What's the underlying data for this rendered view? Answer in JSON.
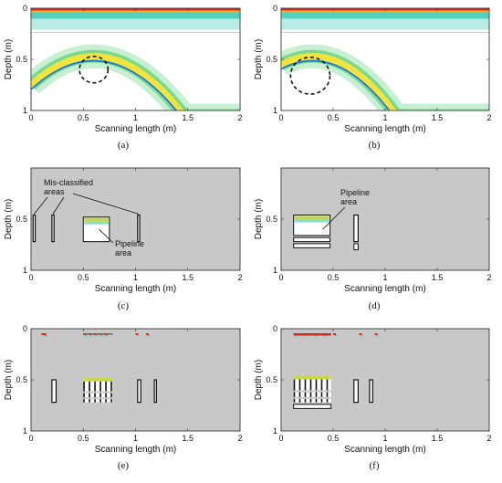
{
  "figure": {
    "panels": [
      {
        "id": "a",
        "label": "(a)",
        "kind": "gpr-radargram",
        "xlabel": "Scanning length (m)",
        "ylabel": "Depth (m)",
        "xticks": [
          "0",
          "0.5",
          "1",
          "1.5",
          "2"
        ],
        "yticks": [
          "0",
          "0.5",
          "1"
        ],
        "hyperbola": {
          "apex_x_m": 0.6,
          "apex_depth_m": 0.47,
          "depth_at_x0_m": 0.75
        },
        "circle": {
          "center_x_m": 0.6,
          "center_depth_m": 0.6,
          "radius_m": 0.13,
          "style": "dashed"
        }
      },
      {
        "id": "b",
        "label": "(b)",
        "kind": "gpr-radargram",
        "xlabel": "Scanning length (m)",
        "ylabel": "Depth (m)",
        "xticks": [
          "0",
          "0.5",
          "1",
          "1.5",
          "2"
        ],
        "yticks": [
          "0",
          "0.5",
          "1"
        ],
        "hyperbola": {
          "apex_x_m": 0.3,
          "apex_depth_m": 0.47,
          "depth_at_x0_m": 0.55
        },
        "circle": {
          "center_x_m": 0.28,
          "center_depth_m": 0.66,
          "radius_m": 0.18,
          "style": "dashed"
        }
      },
      {
        "id": "c",
        "label": "(c)",
        "kind": "classification",
        "xlabel": "Scanning length (m)",
        "ylabel": "Depth (m)",
        "xticks": [
          "0",
          "0.5",
          "1",
          "1.5",
          "2"
        ],
        "yticks": [
          "0.5",
          "1"
        ],
        "annotations": [
          {
            "text": [
              "Mis-classified",
              "areas"
            ]
          },
          {
            "text": [
              "Pipeline",
              "area"
            ]
          }
        ],
        "regions": [
          {
            "x0": 0.5,
            "x1": 0.75,
            "d0": 0.48,
            "d1": 0.72,
            "role": "pipeline"
          },
          {
            "x0": 0.02,
            "x1": 0.04,
            "d0": 0.46,
            "d1": 0.72,
            "role": "misclassified"
          },
          {
            "x0": 0.2,
            "x1": 0.22,
            "d0": 0.46,
            "d1": 0.72,
            "role": "misclassified"
          },
          {
            "x0": 1.02,
            "x1": 1.04,
            "d0": 0.46,
            "d1": 0.72,
            "role": "misclassified"
          }
        ]
      },
      {
        "id": "d",
        "label": "(d)",
        "kind": "classification",
        "xlabel": "Scanning length (m)",
        "ylabel": "Depth (m)",
        "xticks": [
          "0",
          "0.5",
          "1",
          "1.5",
          "2"
        ],
        "yticks": [
          "0.5",
          "1"
        ],
        "annotations": [
          {
            "text": [
              "Pipeline",
              "area"
            ]
          }
        ],
        "regions": [
          {
            "x0": 0.12,
            "x1": 0.47,
            "d0": 0.46,
            "d1": 0.66,
            "role": "pipeline"
          },
          {
            "x0": 0.12,
            "x1": 0.47,
            "d0": 0.68,
            "d1": 0.72,
            "role": "outline"
          },
          {
            "x0": 0.12,
            "x1": 0.47,
            "d0": 0.74,
            "d1": 0.78,
            "role": "outline"
          },
          {
            "x0": 0.7,
            "x1": 0.74,
            "d0": 0.46,
            "d1": 0.72,
            "role": "column"
          },
          {
            "x0": 0.7,
            "x1": 0.74,
            "d0": 0.74,
            "d1": 0.8,
            "role": "outline"
          }
        ]
      },
      {
        "id": "e",
        "label": "(e)",
        "kind": "classification",
        "xlabel": "Scanning length (m)",
        "ylabel": "Depth (m)",
        "xticks": [
          "0",
          "0.5",
          "1",
          "1.5",
          "2"
        ],
        "yticks": [
          "0",
          "0.5",
          "1"
        ],
        "annotations": [],
        "regions": [
          {
            "x0": 0.5,
            "x1": 0.78,
            "d0": 0.48,
            "d1": 0.72,
            "role": "pipeline-stripes"
          },
          {
            "x0": 0.2,
            "x1": 0.24,
            "d0": 0.5,
            "d1": 0.72,
            "role": "column"
          },
          {
            "x0": 1.02,
            "x1": 1.05,
            "d0": 0.5,
            "d1": 0.72,
            "role": "column"
          },
          {
            "x0": 1.18,
            "x1": 1.2,
            "d0": 0.5,
            "d1": 0.72,
            "role": "column"
          }
        ]
      },
      {
        "id": "f",
        "label": "(f)",
        "kind": "classification",
        "xlabel": "Scanning length (m)",
        "ylabel": "Depth (m)",
        "xticks": [
          "0",
          "0.5",
          "1",
          "1.5",
          "2"
        ],
        "yticks": [
          "0",
          "0.5",
          "1"
        ],
        "annotations": [],
        "regions": [
          {
            "x0": 0.12,
            "x1": 0.48,
            "d0": 0.46,
            "d1": 0.72,
            "role": "pipeline-stripes"
          },
          {
            "x0": 0.7,
            "x1": 0.74,
            "d0": 0.5,
            "d1": 0.72,
            "role": "column"
          },
          {
            "x0": 0.85,
            "x1": 0.88,
            "d0": 0.5,
            "d1": 0.72,
            "role": "column"
          },
          {
            "x0": 0.12,
            "x1": 0.48,
            "d0": 0.74,
            "d1": 0.78,
            "role": "outline"
          }
        ]
      }
    ],
    "colors": {
      "radargram_bg": "#ffffff",
      "surface_red": "#d42c1c",
      "surface_teal": "#37c8b4",
      "hyperbola_core": "#1b6fd6",
      "hyperbola_yellow": "#f3e43d",
      "hyperbola_green": "#5fd27a",
      "classification_bg": "#c8c8c8",
      "region_fill": "#ffffff",
      "region_edge": "#111111",
      "pipeline_top": "#c6d84a"
    }
  }
}
